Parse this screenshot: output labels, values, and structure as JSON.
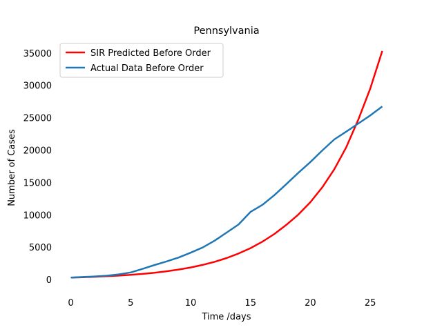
{
  "chart_data": {
    "type": "line",
    "title": "Pennsylvania",
    "xlabel": "Time /days",
    "ylabel": "Number of Cases",
    "xlim": [
      -1.3,
      27.3
    ],
    "ylim": [
      -1800,
      37000
    ],
    "xticks": [
      0,
      5,
      10,
      15,
      20,
      25
    ],
    "yticks": [
      0,
      5000,
      10000,
      15000,
      20000,
      25000,
      30000,
      35000
    ],
    "grid": false,
    "legend_position": "top-left",
    "x": [
      0,
      1,
      2,
      3,
      4,
      5,
      6,
      7,
      8,
      9,
      10,
      11,
      12,
      13,
      14,
      15,
      16,
      17,
      18,
      19,
      20,
      21,
      22,
      23,
      24,
      25,
      26
    ],
    "series": [
      {
        "name": "SIR Predicted Before Order",
        "color": "#ff0000",
        "values": [
          300,
          360,
          430,
          510,
          610,
          730,
          880,
          1060,
          1280,
          1550,
          1870,
          2260,
          2740,
          3320,
          4020,
          4850,
          5850,
          7050,
          8450,
          10050,
          11950,
          14250,
          17050,
          20450,
          24700,
          29500,
          35300
        ]
      },
      {
        "name": "Actual Data Before Order",
        "color": "#1f77b4",
        "values": [
          300,
          400,
          480,
          600,
          800,
          1100,
          1650,
          2250,
          2800,
          3400,
          4150,
          4950,
          6000,
          7250,
          8500,
          10450,
          11550,
          13050,
          14750,
          16500,
          18150,
          19950,
          21650,
          22850,
          24100,
          25350,
          26750
        ]
      }
    ]
  }
}
